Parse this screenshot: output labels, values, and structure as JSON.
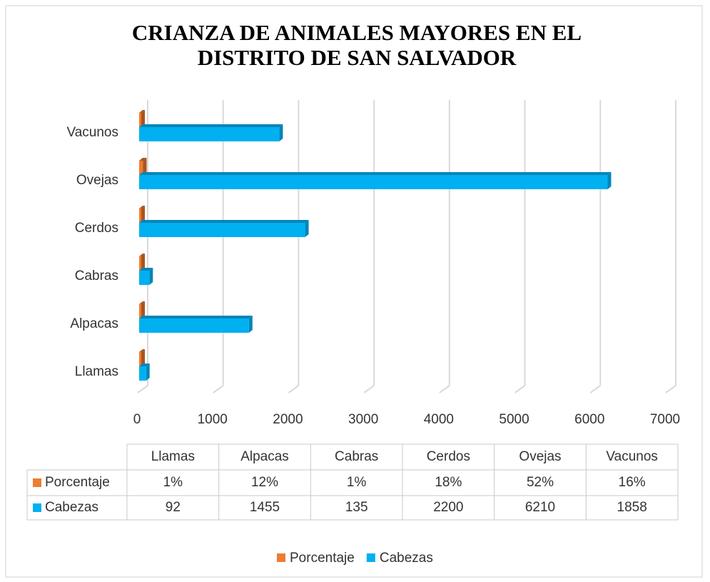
{
  "chart_data": {
    "type": "bar3d_table",
    "title": "CRIANZA DE ANIMALES MAYORES EN EL DISTRITO DE SAN SALVADOR",
    "categories": [
      "Llamas",
      "Alpacas",
      "Cabras",
      "Cerdos",
      "Ovejas",
      "Vacunos"
    ],
    "series": [
      {
        "name": "Porcentaje",
        "color": "#ed7d31",
        "values": [
          1,
          12,
          1,
          18,
          52,
          16
        ],
        "value_labels": [
          "1%",
          "12%",
          "1%",
          "18%",
          "52%",
          "16%"
        ]
      },
      {
        "name": "Cabezas",
        "color": "#00b0f0",
        "values": [
          92,
          1455,
          135,
          2200,
          6210,
          1858
        ]
      }
    ],
    "xlim": [
      0,
      7000
    ],
    "xticks": [
      0,
      1000,
      2000,
      3000,
      4000,
      5000,
      6000,
      7000
    ],
    "grid": true,
    "legend": "bottom"
  }
}
